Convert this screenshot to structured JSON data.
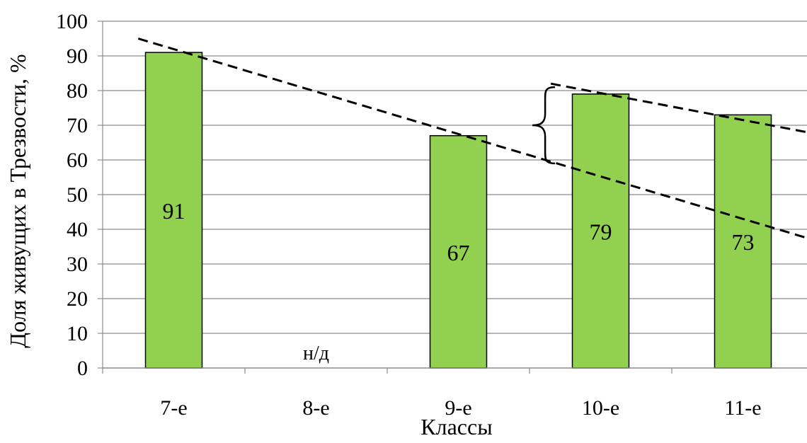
{
  "chart_data": {
    "type": "bar",
    "title": "",
    "xlabel": "Классы",
    "ylabel": "Доля живущих в Трезвости, %",
    "categories": [
      "7-е",
      "8-е",
      "9-е",
      "10-е",
      "11-е"
    ],
    "values": [
      91,
      null,
      67,
      79,
      73
    ],
    "data_labels": [
      "91",
      "н/д",
      "67",
      "79",
      "73"
    ],
    "ylim": [
      0,
      100
    ],
    "yticks": [
      0,
      10,
      20,
      30,
      40,
      50,
      60,
      70,
      80,
      90,
      100
    ],
    "grid": true,
    "legend": "none",
    "bar_color": "#92d050",
    "bar_edge_color": "#000000",
    "trend_lines": [
      {
        "style": "dashed",
        "from": {
          "category_pos": -0.25,
          "y": 95
        },
        "to": {
          "category_pos": 4.45,
          "y": 37.5
        }
      },
      {
        "style": "dashed",
        "from": {
          "category_pos": 2.65,
          "y": 82
        },
        "to": {
          "category_pos": 4.45,
          "y": 68
        }
      }
    ],
    "brace": {
      "category_pos": 2.6,
      "y_from": 59,
      "y_to": 81
    }
  }
}
